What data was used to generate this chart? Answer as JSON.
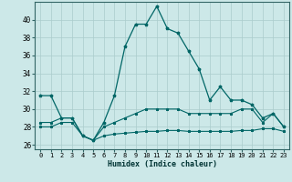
{
  "title": "",
  "xlabel": "Humidex (Indice chaleur)",
  "background_color": "#cce8e8",
  "grid_color": "#aacccc",
  "line_color": "#006666",
  "xlim": [
    -0.5,
    23.5
  ],
  "ylim": [
    25.5,
    42.0
  ],
  "xticks": [
    0,
    1,
    2,
    3,
    4,
    5,
    6,
    7,
    8,
    9,
    10,
    11,
    12,
    13,
    14,
    15,
    16,
    17,
    18,
    19,
    20,
    21,
    22,
    23
  ],
  "yticks": [
    26,
    28,
    30,
    32,
    34,
    36,
    38,
    40
  ],
  "series1_x": [
    0,
    1,
    2,
    3,
    4,
    5,
    6,
    7,
    8,
    9,
    10,
    11,
    12,
    13,
    14,
    15,
    16,
    17,
    18,
    19,
    20,
    21,
    22,
    23
  ],
  "series1_y": [
    31.5,
    31.5,
    29.0,
    29.0,
    27.0,
    26.5,
    28.5,
    31.5,
    37.0,
    39.5,
    39.5,
    41.5,
    39.0,
    38.5,
    36.5,
    34.5,
    31.0,
    32.5,
    31.0,
    31.0,
    30.5,
    29.0,
    29.5,
    28.0
  ],
  "series2_x": [
    0,
    1,
    2,
    3,
    4,
    5,
    6,
    7,
    8,
    9,
    10,
    11,
    12,
    13,
    14,
    15,
    16,
    17,
    18,
    19,
    20,
    21,
    22,
    23
  ],
  "series2_y": [
    28.5,
    28.5,
    29.0,
    29.0,
    27.0,
    26.5,
    28.0,
    28.5,
    29.0,
    29.5,
    30.0,
    30.0,
    30.0,
    30.0,
    29.5,
    29.5,
    29.5,
    29.5,
    29.5,
    30.0,
    30.0,
    28.5,
    29.5,
    28.0
  ],
  "series3_x": [
    0,
    1,
    2,
    3,
    4,
    5,
    6,
    7,
    8,
    9,
    10,
    11,
    12,
    13,
    14,
    15,
    16,
    17,
    18,
    19,
    20,
    21,
    22,
    23
  ],
  "series3_y": [
    28.0,
    28.0,
    28.5,
    28.5,
    27.0,
    26.5,
    27.0,
    27.2,
    27.3,
    27.4,
    27.5,
    27.5,
    27.6,
    27.6,
    27.5,
    27.5,
    27.5,
    27.5,
    27.5,
    27.6,
    27.6,
    27.8,
    27.8,
    27.5
  ]
}
